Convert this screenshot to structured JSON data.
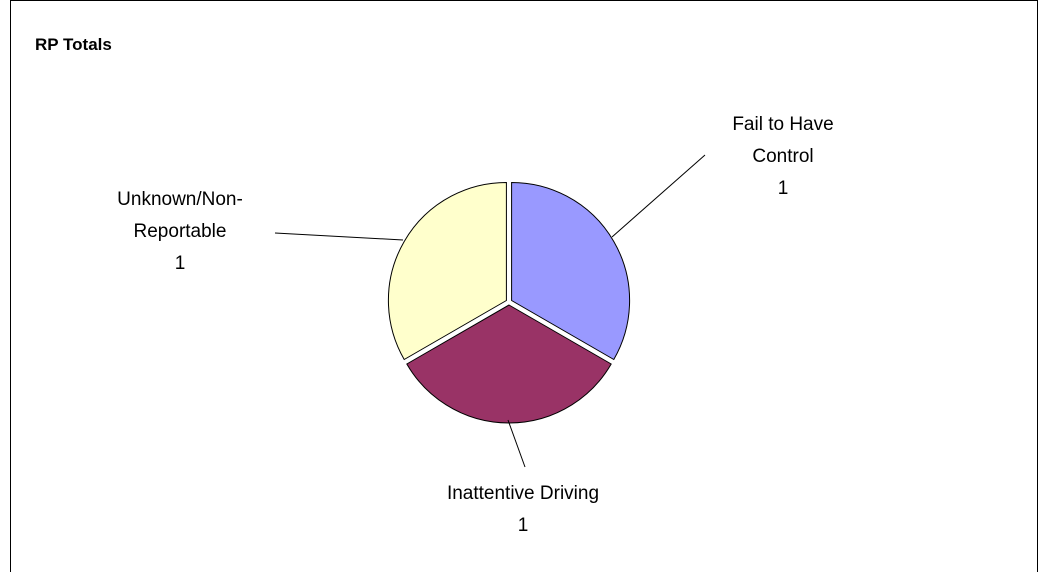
{
  "chart_data": {
    "type": "pie",
    "title": "RP Totals",
    "categories": [
      "Fail to Have Control",
      "Inattentive Driving",
      "Unknown/Non-Reportable"
    ],
    "values": [
      1,
      1,
      1
    ],
    "colors": [
      "#9999ff",
      "#993366",
      "#ffffcc"
    ]
  }
}
